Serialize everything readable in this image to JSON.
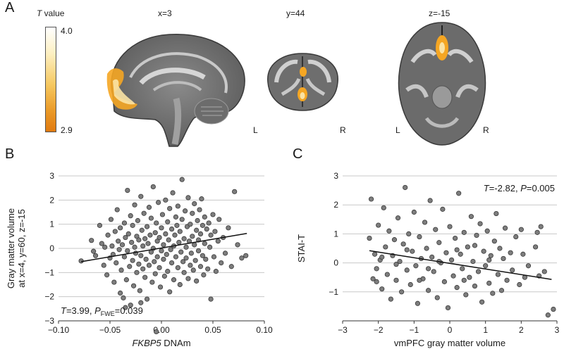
{
  "panel_a": {
    "letter": "A",
    "colorbar": {
      "title_italic": "T",
      "title_rest": " value",
      "max_label": "4.0",
      "min_label": "2.9",
      "color_top": "#ffffff",
      "color_mid": "#f6c860",
      "color_bottom": "#e07a10"
    },
    "views": [
      {
        "coord": "x=3"
      },
      {
        "coord": "y=44",
        "left": "L",
        "right": "R"
      },
      {
        "coord": "z=-15",
        "left": "L",
        "right": "R"
      }
    ]
  },
  "panel_b": {
    "letter": "B",
    "annotation": {
      "t_label": "T",
      "t_value": "=3.99, ",
      "p_label": "P",
      "p_sub": "FWE",
      "p_value": "=0.039"
    }
  },
  "panel_c": {
    "letter": "C",
    "annotation": {
      "t_label": "T",
      "t_value": "=-2.82, ",
      "p_label": "P",
      "p_value": "=0.005"
    }
  },
  "chart_data": [
    {
      "type": "scatter",
      "id": "B",
      "xlabel_italic": "FKBP5",
      "xlabel_rest": " DNAm",
      "ylabel": [
        "Gray matter volume",
        "at x=4, y=60, z=-15"
      ],
      "xlim": [
        -0.1,
        0.1
      ],
      "ylim": [
        -3,
        3
      ],
      "xticks": [
        -0.1,
        -0.05,
        0.0,
        0.05,
        0.1
      ],
      "xtick_labels": [
        "−0.10",
        "−0.05",
        "0.00",
        "0.05",
        "0.10"
      ],
      "yticks": [
        3,
        2,
        1,
        0,
        -1,
        -2,
        -3
      ],
      "ytick_labels": [
        "3",
        "2",
        "1",
        "0",
        "−1",
        "−2",
        "−3"
      ],
      "grid": "horizontal",
      "fit_line": {
        "x": [
          -0.078,
          0.083
        ],
        "y": [
          -0.55,
          0.62
        ]
      },
      "points": [
        [
          -0.078,
          -0.52
        ],
        [
          -0.068,
          0.33
        ],
        [
          -0.066,
          -0.12
        ],
        [
          -0.064,
          -0.3
        ],
        [
          -0.06,
          0.95
        ],
        [
          -0.058,
          0.2
        ],
        [
          -0.056,
          -0.7
        ],
        [
          -0.055,
          0.05
        ],
        [
          -0.053,
          -1.1
        ],
        [
          -0.052,
          0.55
        ],
        [
          -0.05,
          -0.4
        ],
        [
          -0.049,
          1.2
        ],
        [
          -0.048,
          0.1
        ],
        [
          -0.047,
          -0.25
        ],
        [
          -0.046,
          -1.4
        ],
        [
          -0.045,
          0.7
        ],
        [
          -0.044,
          -0.6
        ],
        [
          -0.043,
          1.6
        ],
        [
          -0.042,
          0.3
        ],
        [
          -0.041,
          -0.05
        ],
        [
          -0.04,
          -1.85
        ],
        [
          -0.04,
          0.85
        ],
        [
          -0.039,
          -0.9
        ],
        [
          -0.038,
          0.15
        ],
        [
          -0.037,
          -2.05
        ],
        [
          -0.036,
          1.05
        ],
        [
          -0.036,
          -0.35
        ],
        [
          -0.035,
          0.45
        ],
        [
          -0.034,
          -1.3
        ],
        [
          -0.033,
          2.4
        ],
        [
          -0.033,
          -0.1
        ],
        [
          -0.032,
          0.6
        ],
        [
          -0.031,
          -0.75
        ],
        [
          -0.03,
          1.35
        ],
        [
          -0.03,
          -2.35
        ],
        [
          -0.029,
          0.25
        ],
        [
          -0.028,
          -0.5
        ],
        [
          -0.028,
          0.95
        ],
        [
          -0.027,
          -1.55
        ],
        [
          -0.026,
          1.8
        ],
        [
          -0.026,
          0.05
        ],
        [
          -0.025,
          -0.2
        ],
        [
          -0.024,
          0.5
        ],
        [
          -0.024,
          -1.0
        ],
        [
          -0.023,
          1.15
        ],
        [
          -0.022,
          -0.65
        ],
        [
          -0.022,
          0.35
        ],
        [
          -0.021,
          -1.75
        ],
        [
          -0.02,
          2.15
        ],
        [
          -0.02,
          -0.3
        ],
        [
          -0.019,
          0.75
        ],
        [
          -0.018,
          -0.85
        ],
        [
          -0.018,
          0.1
        ],
        [
          -0.017,
          1.45
        ],
        [
          -0.016,
          -1.2
        ],
        [
          -0.016,
          0.4
        ],
        [
          -0.015,
          -0.45
        ],
        [
          -0.014,
          0.9
        ],
        [
          -0.014,
          -2.1
        ],
        [
          -0.013,
          0.2
        ],
        [
          -0.012,
          1.7
        ],
        [
          -0.012,
          -0.7
        ],
        [
          -0.011,
          0.55
        ],
        [
          -0.01,
          -0.15
        ],
        [
          -0.01,
          1.25
        ],
        [
          -0.009,
          -1.4
        ],
        [
          -0.008,
          0.0
        ],
        [
          -0.008,
          2.55
        ],
        [
          -0.007,
          -0.55
        ],
        [
          -0.006,
          0.65
        ],
        [
          -0.006,
          -1.05
        ],
        [
          -0.005,
          1.05
        ],
        [
          -0.004,
          0.3
        ],
        [
          -0.004,
          -0.35
        ],
        [
          -0.003,
          1.9
        ],
        [
          -0.002,
          -0.8
        ],
        [
          -0.002,
          0.45
        ],
        [
          -0.001,
          -1.6
        ],
        [
          0.0,
          0.85
        ],
        [
          0.0,
          -0.1
        ],
        [
          0.001,
          1.4
        ],
        [
          0.002,
          -0.45
        ],
        [
          0.002,
          0.15
        ],
        [
          0.003,
          -1.15
        ],
        [
          0.004,
          2.0
        ],
        [
          0.004,
          0.6
        ],
        [
          0.005,
          -0.25
        ],
        [
          0.006,
          1.1
        ],
        [
          0.006,
          -0.95
        ],
        [
          0.007,
          0.35
        ],
        [
          0.008,
          -1.8
        ],
        [
          0.008,
          1.65
        ],
        [
          0.009,
          -0.05
        ],
        [
          0.01,
          0.8
        ],
        [
          0.01,
          -0.6
        ],
        [
          0.011,
          2.3
        ],
        [
          0.012,
          0.1
        ],
        [
          0.012,
          -1.3
        ],
        [
          0.013,
          0.55
        ],
        [
          0.014,
          1.3
        ],
        [
          0.014,
          -0.35
        ],
        [
          0.015,
          0.95
        ],
        [
          0.016,
          -0.8
        ],
        [
          0.016,
          1.75
        ],
        [
          0.017,
          0.25
        ],
        [
          0.018,
          -1.5
        ],
        [
          0.018,
          0.7
        ],
        [
          0.019,
          -0.15
        ],
        [
          0.02,
          2.85
        ],
        [
          0.02,
          1.2
        ],
        [
          0.021,
          -0.55
        ],
        [
          0.022,
          0.4
        ],
        [
          0.022,
          -1.0
        ],
        [
          0.023,
          1.55
        ],
        [
          0.024,
          0.05
        ],
        [
          0.024,
          -0.4
        ],
        [
          0.025,
          0.9
        ],
        [
          0.026,
          -1.25
        ],
        [
          0.026,
          2.1
        ],
        [
          0.027,
          0.3
        ],
        [
          0.028,
          -0.7
        ],
        [
          0.028,
          1.0
        ],
        [
          0.029,
          -0.2
        ],
        [
          0.03,
          1.45
        ],
        [
          0.03,
          0.5
        ],
        [
          0.031,
          -0.9
        ],
        [
          0.032,
          0.15
        ],
        [
          0.032,
          1.85
        ],
        [
          0.033,
          -0.5
        ],
        [
          0.034,
          0.75
        ],
        [
          0.034,
          -1.35
        ],
        [
          0.035,
          1.15
        ],
        [
          0.036,
          0.35
        ],
        [
          0.036,
          -0.1
        ],
        [
          0.037,
          1.6
        ],
        [
          0.038,
          -0.75
        ],
        [
          0.038,
          0.6
        ],
        [
          0.039,
          2.05
        ],
        [
          0.04,
          -0.3
        ],
        [
          0.04,
          0.95
        ],
        [
          0.041,
          -1.1
        ],
        [
          0.042,
          0.2
        ],
        [
          0.042,
          1.3
        ],
        [
          0.043,
          -0.45
        ],
        [
          0.044,
          0.8
        ],
        [
          0.045,
          -0.85
        ],
        [
          0.046,
          1.05
        ],
        [
          0.047,
          0.05
        ],
        [
          0.048,
          -2.1
        ],
        [
          0.048,
          0.55
        ],
        [
          0.05,
          1.4
        ],
        [
          0.051,
          -0.35
        ],
        [
          0.052,
          0.7
        ],
        [
          0.053,
          -0.95
        ],
        [
          0.055,
          0.3
        ],
        [
          0.056,
          1.2
        ],
        [
          0.058,
          -0.6
        ],
        [
          0.06,
          0.45
        ],
        [
          0.062,
          -0.2
        ],
        [
          0.065,
          0.85
        ],
        [
          0.068,
          -0.75
        ],
        [
          0.071,
          2.35
        ],
        [
          0.074,
          0.15
        ],
        [
          0.078,
          -0.4
        ],
        [
          0.082,
          -0.3
        ],
        [
          -0.005,
          -3.45
        ],
        [
          -0.035,
          -2.45
        ],
        [
          -0.02,
          -2.25
        ]
      ]
    },
    {
      "type": "scatter",
      "id": "C",
      "xlabel": "vmPFC gray matter volume",
      "ylabel": [
        "STAI-T"
      ],
      "xlim": [
        -3,
        3
      ],
      "ylim": [
        -2,
        3
      ],
      "xticks": [
        -3,
        -2,
        -1,
        0,
        1,
        2,
        3
      ],
      "xtick_labels": [
        "−3",
        "−2",
        "−1",
        "0",
        "1",
        "2",
        "3"
      ],
      "yticks": [
        3,
        2,
        1,
        0,
        -1
      ],
      "ytick_labels": [
        "3",
        "2",
        "1",
        "0",
        "−1"
      ],
      "grid": "horizontal",
      "fit_line": {
        "x": [
          -2.25,
          2.85
        ],
        "y": [
          0.42,
          -0.57
        ]
      },
      "points": [
        [
          -2.25,
          0.85
        ],
        [
          -2.2,
          2.2
        ],
        [
          -2.15,
          -0.55
        ],
        [
          -2.1,
          0.3
        ],
        [
          -2.05,
          -0.2
        ],
        [
          -2.0,
          1.3
        ],
        [
          -1.95,
          0.1
        ],
        [
          -1.9,
          -0.9
        ],
        [
          -1.85,
          1.9
        ],
        [
          -1.8,
          0.55
        ],
        [
          -1.75,
          -0.4
        ],
        [
          -1.7,
          1.1
        ],
        [
          -1.65,
          -1.25
        ],
        [
          -1.6,
          0.25
        ],
        [
          -1.55,
          0.8
        ],
        [
          -1.5,
          -0.6
        ],
        [
          -1.45,
          1.55
        ],
        [
          -1.4,
          0.05
        ],
        [
          -1.35,
          -1.0
        ],
        [
          -1.3,
          0.65
        ],
        [
          -1.25,
          2.6
        ],
        [
          -1.2,
          -0.25
        ],
        [
          -1.15,
          1.0
        ],
        [
          -1.1,
          -0.75
        ],
        [
          -1.05,
          0.4
        ],
        [
          -1.0,
          1.75
        ],
        [
          -0.95,
          -0.1
        ],
        [
          -0.9,
          -1.4
        ],
        [
          -0.85,
          0.9
        ],
        [
          -0.8,
          0.15
        ],
        [
          -0.75,
          -0.55
        ],
        [
          -0.7,
          1.4
        ],
        [
          -0.65,
          0.5
        ],
        [
          -0.6,
          -0.95
        ],
        [
          -0.55,
          2.15
        ],
        [
          -0.5,
          0.2
        ],
        [
          -0.45,
          -0.3
        ],
        [
          -0.4,
          1.15
        ],
        [
          -0.35,
          -1.2
        ],
        [
          -0.3,
          0.7
        ],
        [
          -0.25,
          0.0
        ],
        [
          -0.2,
          1.85
        ],
        [
          -0.15,
          -0.65
        ],
        [
          -0.1,
          0.35
        ],
        [
          -0.05,
          -1.55
        ],
        [
          0.0,
          1.25
        ],
        [
          0.05,
          0.1
        ],
        [
          0.1,
          -0.45
        ],
        [
          0.15,
          0.85
        ],
        [
          0.2,
          -0.85
        ],
        [
          0.25,
          2.4
        ],
        [
          0.3,
          0.3
        ],
        [
          0.35,
          -0.2
        ],
        [
          0.4,
          1.05
        ],
        [
          0.45,
          -1.1
        ],
        [
          0.5,
          0.55
        ],
        [
          0.55,
          -0.5
        ],
        [
          0.6,
          1.6
        ],
        [
          0.65,
          0.05
        ],
        [
          0.7,
          -0.8
        ],
        [
          0.75,
          0.95
        ],
        [
          0.8,
          -0.3
        ],
        [
          0.85,
          1.35
        ],
        [
          0.9,
          -1.35
        ],
        [
          0.95,
          0.4
        ],
        [
          1.0,
          -0.1
        ],
        [
          1.05,
          1.1
        ],
        [
          1.1,
          -0.7
        ],
        [
          1.15,
          0.25
        ],
        [
          1.2,
          -1.05
        ],
        [
          1.25,
          0.75
        ],
        [
          1.3,
          1.7
        ],
        [
          1.35,
          -0.4
        ],
        [
          1.4,
          0.5
        ],
        [
          1.45,
          -0.95
        ],
        [
          1.5,
          0.15
        ],
        [
          1.55,
          1.2
        ],
        [
          1.6,
          -0.6
        ],
        [
          1.7,
          0.35
        ],
        [
          1.75,
          -0.25
        ],
        [
          1.85,
          0.9
        ],
        [
          1.95,
          -0.75
        ],
        [
          2.0,
          1.15
        ],
        [
          2.05,
          0.3
        ],
        [
          2.1,
          -0.5
        ],
        [
          2.2,
          -0.1
        ],
        [
          2.4,
          0.55
        ],
        [
          2.45,
          1.05
        ],
        [
          2.5,
          -0.45
        ],
        [
          2.55,
          1.25
        ],
        [
          2.65,
          -0.3
        ],
        [
          2.75,
          -1.8
        ],
        [
          2.9,
          -1.6
        ],
        [
          -1.5,
          -0.05
        ],
        [
          -0.6,
          -0.2
        ],
        [
          0.4,
          -0.6
        ],
        [
          -1.9,
          0.2
        ],
        [
          -1.2,
          0.45
        ],
        [
          -0.3,
          0.05
        ],
        [
          0.7,
          0.6
        ],
        [
          1.1,
          0.1
        ],
        [
          -2.05,
          -0.65
        ],
        [
          -0.85,
          -0.6
        ],
        [
          0.2,
          0.45
        ]
      ]
    }
  ]
}
